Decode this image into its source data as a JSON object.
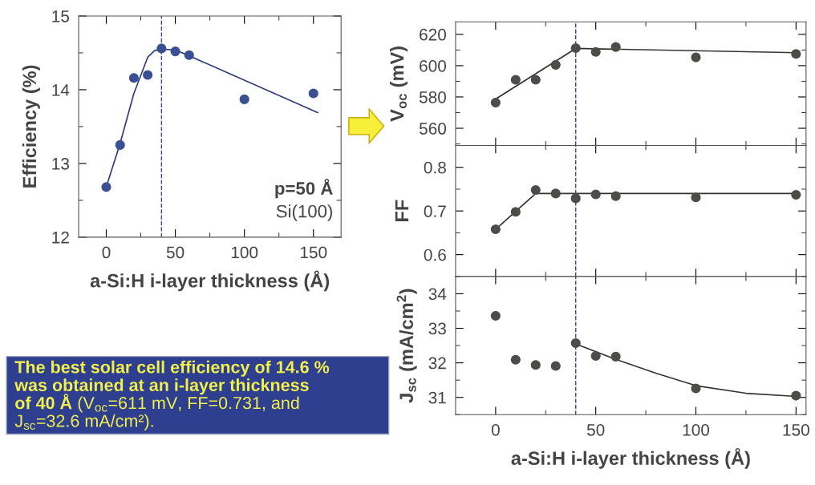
{
  "chart_data": [
    {
      "type": "scatter",
      "x": [
        0,
        10,
        20,
        30,
        40,
        50,
        60,
        100,
        150
      ],
      "ylabel": "Efficiency (%)",
      "xlabel": "a-Si:H i-layer thickness (Å)",
      "series": [
        {
          "color": "#3a4f94",
          "marker": "circle",
          "values": [
            12.68,
            13.25,
            14.16,
            14.2,
            14.56,
            14.52,
            14.47,
            13.87,
            13.95
          ]
        },
        {
          "type": "line",
          "color": "#2b3b7f",
          "x": [
            0,
            10,
            20,
            30,
            35,
            40,
            50,
            60,
            153
          ],
          "values": [
            12.68,
            13.27,
            13.95,
            14.44,
            14.53,
            14.55,
            14.54,
            14.46,
            13.69
          ]
        }
      ],
      "xlim": [
        -20,
        170
      ],
      "xticks": [
        0,
        50,
        100,
        150
      ],
      "ylim": [
        12,
        15
      ],
      "yticks": [
        12,
        13,
        14,
        15
      ],
      "ref_lines": [
        {
          "axis": "x",
          "value": 40,
          "color": "#2c4a9a",
          "line_style": "dashed"
        }
      ],
      "annotations": [
        "p=50 Å",
        "Si(100)"
      ]
    },
    {
      "type": "scatter",
      "x": [
        0,
        10,
        20,
        30,
        40,
        50,
        60,
        100,
        150
      ],
      "ylabel": "V$_{oc}$ (mV)",
      "series": [
        {
          "color": "#4a4d48",
          "marker": "circle",
          "values": [
            576.4,
            591,
            591,
            600.5,
            611.2,
            608.8,
            611.9,
            605.3,
            607.5
          ]
        },
        {
          "type": "line",
          "color": "#333333",
          "x": [
            0,
            40,
            150
          ],
          "values": [
            578.7,
            611,
            608.3
          ]
        }
      ],
      "xlim": [
        -20,
        155
      ],
      "xticks": [
        0,
        50,
        100,
        150
      ],
      "ylim": [
        549,
        628
      ],
      "yticks": [
        560,
        580,
        600,
        620
      ],
      "tick_labels": "y",
      "ref_lines": [
        {
          "axis": "x",
          "value": 40,
          "color": "#2c4a9a",
          "line_style": "dashed"
        }
      ]
    },
    {
      "type": "scatter",
      "x": [
        0,
        10,
        20,
        30,
        40,
        50,
        60,
        100,
        150
      ],
      "ylabel": "FF",
      "series": [
        {
          "color": "#4a4d48",
          "marker": "circle",
          "values": [
            0.658,
            0.698,
            0.748,
            0.74,
            0.729,
            0.738,
            0.734,
            0.731,
            0.737
          ]
        },
        {
          "type": "line",
          "color": "#333333",
          "x": [
            0,
            20,
            150
          ],
          "values": [
            0.658,
            0.74,
            0.74
          ]
        }
      ],
      "xlim": [
        -20,
        155
      ],
      "xticks": [
        0,
        50,
        100,
        150
      ],
      "ylim": [
        0.55,
        0.85
      ],
      "yticks": [
        0.6,
        0.7,
        0.8
      ],
      "tick_labels": "y",
      "ref_lines": [
        {
          "axis": "x",
          "value": 40,
          "color": "#2c4a9a",
          "line_style": "dashed"
        }
      ]
    },
    {
      "type": "scatter",
      "x": [
        0,
        10,
        20,
        30,
        40,
        50,
        60,
        100,
        150
      ],
      "ylabel": "J$_{sc}$ (mA/cm$^{2}$)",
      "xlabel": "a-Si:H i-layer thickness (Å)",
      "series": [
        {
          "color": "#4a4d48",
          "marker": "circle",
          "values": [
            33.36,
            32.09,
            31.94,
            31.91,
            32.57,
            32.2,
            32.18,
            31.26,
            31.05
          ]
        },
        {
          "type": "line",
          "color": "#333333",
          "x": [
            40,
            60,
            80,
            100,
            125,
            150
          ],
          "values": [
            32.55,
            32.1,
            31.7,
            31.34,
            31.12,
            31.03
          ]
        }
      ],
      "xlim": [
        -20,
        155
      ],
      "xticks": [
        0,
        50,
        100,
        150
      ],
      "ylim": [
        30.5,
        34.5
      ],
      "yticks": [
        31,
        32,
        33,
        34
      ],
      "ref_lines": [
        {
          "axis": "x",
          "value": 40,
          "color": "#2c4a9a",
          "line_style": "dashed"
        }
      ]
    },
    {
      "type": "other",
      "annotations": [
        "The best solar cell efficiency of 14.6 %\nwas obtained at an i-layer thickness\nof 40 Å ",
        "(V$_{oc}$=611 mV, FF=0.731, and\nJ$_{sc}$=32.6 mA/cm²)."
      ]
    }
  ]
}
